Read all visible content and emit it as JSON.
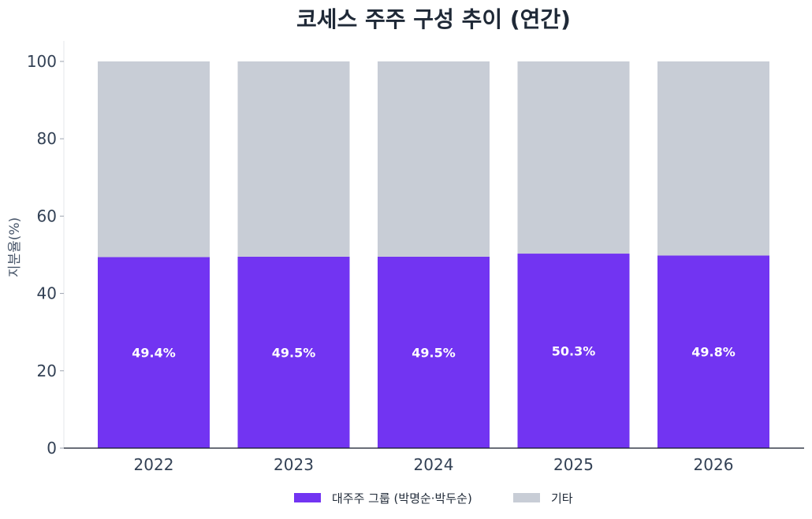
{
  "chart_data": {
    "type": "bar",
    "stacked": true,
    "title": "코세스 주주 구성 추이 (연간)",
    "xlabel": "",
    "ylabel": "지분율(%)",
    "ylim": [
      0,
      100
    ],
    "yticks": [
      0,
      20,
      40,
      60,
      80,
      100
    ],
    "categories": [
      "2022",
      "2023",
      "2024",
      "2025",
      "2026"
    ],
    "series": [
      {
        "name": "대주주 그룹 (박명순·박두순)",
        "values": [
          49.4,
          49.5,
          49.5,
          50.3,
          49.8
        ],
        "color": "#7234f2"
      },
      {
        "name": "기타",
        "values": [
          50.6,
          50.5,
          50.5,
          49.7,
          50.2
        ],
        "color": "#c8cdd6"
      }
    ],
    "data_labels": [
      "49.4%",
      "49.5%",
      "49.5%",
      "50.3%",
      "49.8%"
    ],
    "legend_position": "bottom-center",
    "grid": false
  }
}
